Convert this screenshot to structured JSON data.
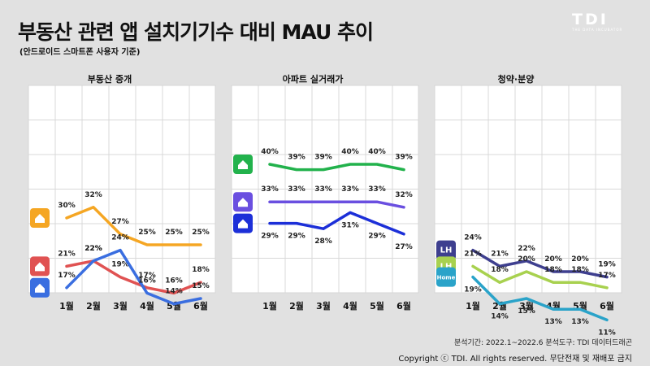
{
  "header": {
    "title": "부동산 관련 앱 설치기기수 대비 MAU 추이",
    "subtitle": "(안드로이드 스마트폰 사용자 기준)",
    "brand": "TDI",
    "brand_tagline": "THE DATA INCUBATOR"
  },
  "footer": {
    "period": "분석기간: 2022.1~2022.6  분석도구: TDI 데이터드래곤",
    "copyright": "Copyright ⓒ TDI. All rights reserved. 무단전재 및 재배포 금지"
  },
  "chart_data": [
    {
      "type": "line",
      "title": "부동산 중개",
      "categories": [
        "1월",
        "2월",
        "3월",
        "4월",
        "5월",
        "6월"
      ],
      "ylim": [
        0,
        45
      ],
      "grid": true,
      "series": [
        {
          "icon": "house-app-icon",
          "color": "#f5a623",
          "values": [
            30,
            32,
            27,
            25,
            25,
            25
          ],
          "labels": [
            "30%",
            "32%",
            "27%",
            "25%",
            "25%",
            "25%"
          ]
        },
        {
          "icon": "green-home-app-icon",
          "color": "#e05252",
          "values": [
            21,
            22,
            19,
            17,
            16,
            18
          ],
          "labels": [
            "21%",
            "22%",
            "19%",
            "17%",
            "16%",
            "18%"
          ]
        },
        {
          "icon": "dabang-app-icon",
          "color": "#3a6ee0",
          "values": [
            17,
            22,
            24,
            16,
            14,
            15
          ],
          "labels": [
            "17%",
            "22%",
            "24%",
            "16%",
            "14%",
            "15%"
          ]
        }
      ]
    },
    {
      "type": "line",
      "title": "아파트 실거래가",
      "categories": [
        "1월",
        "2월",
        "3월",
        "4월",
        "5월",
        "6월"
      ],
      "ylim": [
        0,
        45
      ],
      "grid": true,
      "series": [
        {
          "icon": "green-apartment-app-icon",
          "color": "#22b24c",
          "values": [
            40,
            39,
            39,
            40,
            40,
            39
          ],
          "labels": [
            "40%",
            "39%",
            "39%",
            "40%",
            "40%",
            "39%"
          ]
        },
        {
          "icon": "purple-home-app-icon",
          "color": "#6a4fe0",
          "values": [
            33,
            33,
            33,
            33,
            33,
            32
          ],
          "labels": [
            "33%",
            "33%",
            "33%",
            "33%",
            "33%",
            "32%"
          ]
        },
        {
          "icon": "blue-building-app-icon",
          "color": "#1c2fd8",
          "values": [
            29,
            29,
            28,
            31,
            29,
            27
          ],
          "labels": [
            "29%",
            "29%",
            "28%",
            "31%",
            "29%",
            "27%"
          ]
        }
      ]
    },
    {
      "type": "line",
      "title": "청약·분양",
      "categories": [
        "1월",
        "2월",
        "3월",
        "4월",
        "5월",
        "6월"
      ],
      "ylim": [
        0,
        45
      ],
      "grid": true,
      "series": [
        {
          "icon": "lh-app-icon",
          "icon_text": "LH",
          "color": "#3e3f8f",
          "values": [
            24,
            21,
            22,
            20,
            20,
            19
          ],
          "labels": [
            "24%",
            "21%",
            "22%",
            "20%",
            "20%",
            "19%"
          ]
        },
        {
          "icon": "lh-subscription-app-icon",
          "icon_text": "LH",
          "color": "#a8d14f",
          "values": [
            21,
            18,
            20,
            18,
            18,
            17
          ],
          "labels": [
            "21%",
            "18%",
            "20%",
            "18%",
            "18%",
            "17%"
          ]
        },
        {
          "icon": "chungyak-home-app-icon",
          "icon_text": "Home",
          "color": "#2aa3c9",
          "values": [
            19,
            14,
            15,
            13,
            13,
            11
          ],
          "labels": [
            "19%",
            "14%",
            "15%",
            "13%",
            "13%",
            "11%"
          ]
        }
      ]
    }
  ]
}
